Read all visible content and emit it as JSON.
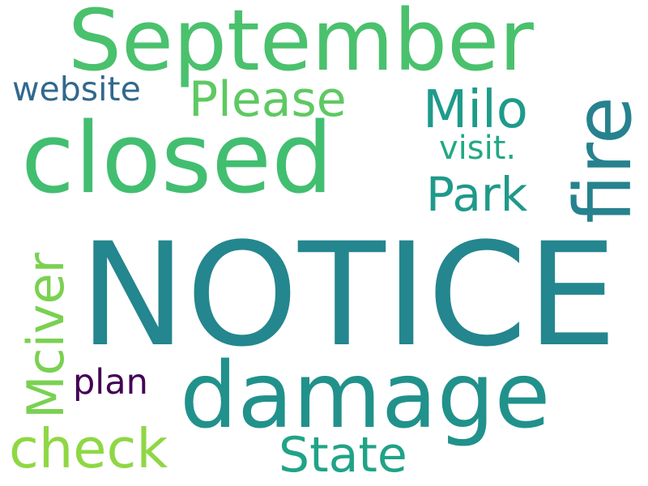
{
  "words": [
    {
      "text": "NOTICE",
      "color": "#24868e"
    },
    {
      "text": "September",
      "color": "#4ac16d"
    },
    {
      "text": "closed",
      "color": "#42be71"
    },
    {
      "text": "damage",
      "color": "#21918c"
    },
    {
      "text": "fire",
      "color": "#26828e"
    },
    {
      "text": "Milo",
      "color": "#1e9b8a"
    },
    {
      "text": "Please",
      "color": "#5ec962"
    },
    {
      "text": "Park",
      "color": "#1f998a"
    },
    {
      "text": "visit.",
      "color": "#22a884"
    },
    {
      "text": "website",
      "color": "#31688e"
    },
    {
      "text": "Mciver",
      "color": "#7ad151"
    },
    {
      "text": "plan",
      "color": "#440154"
    },
    {
      "text": "check",
      "color": "#8fd744"
    },
    {
      "text": "State",
      "color": "#20a386"
    }
  ]
}
